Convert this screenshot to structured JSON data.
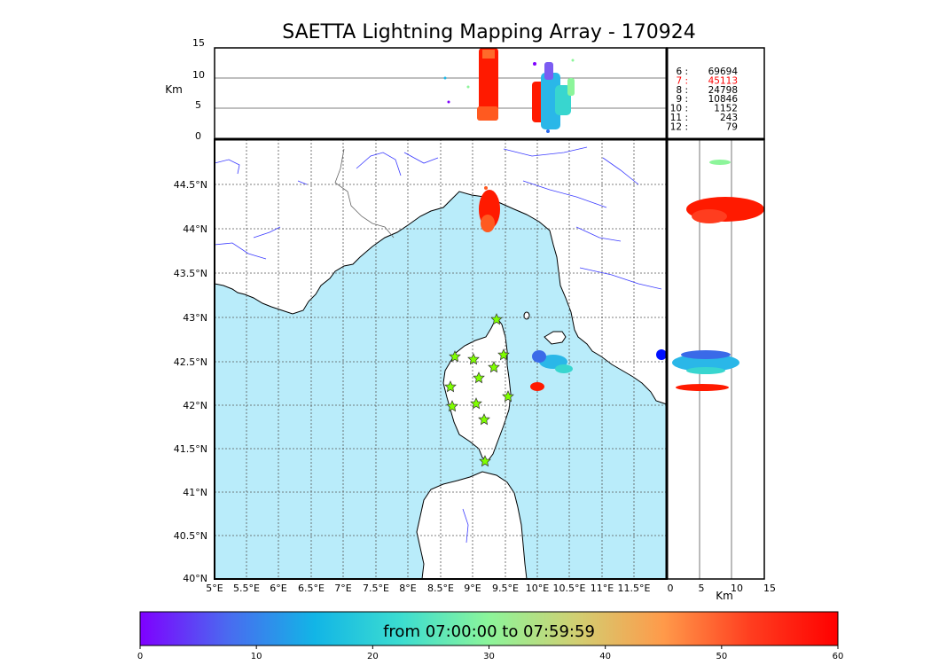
{
  "title": "SAETTA Lightning Mapping Array - 170924",
  "altitude_axis": {
    "unit_label": "Km",
    "ticks": [
      "15",
      "10",
      "5",
      "0"
    ]
  },
  "lat_ticks": [
    "44.5°N",
    "44°N",
    "43.5°N",
    "43°N",
    "42.5°N",
    "42°N",
    "41.5°N",
    "41°N",
    "40.5°N",
    "40°N"
  ],
  "lon_ticks": [
    "5°E",
    "5.5°E",
    "6°E",
    "6.5°E",
    "7°E",
    "7.5°E",
    "8°E",
    "8.5°E",
    "9°E",
    "9.5°E",
    "10°E",
    "10.5°E",
    "11°E",
    "11.5°E"
  ],
  "side_axis": {
    "unit_label": "Km",
    "ticks": [
      "0",
      "5",
      "10",
      "15"
    ]
  },
  "station_counts": [
    {
      "station": "6",
      "count": "69694",
      "color": "#000000"
    },
    {
      "station": "7",
      "count": "45113",
      "color": "#ff0000"
    },
    {
      "station": "8",
      "count": "24798",
      "color": "#000000"
    },
    {
      "station": "9",
      "count": "10846",
      "color": "#000000"
    },
    {
      "station": "10",
      "count": "1152",
      "color": "#000000"
    },
    {
      "station": "11",
      "count": "243",
      "color": "#000000"
    },
    {
      "station": "12",
      "count": "79",
      "color": "#000000"
    }
  ],
  "colorbar": {
    "label": "from 07:00:00 to 07:59:59",
    "ticks": [
      "0",
      "10",
      "20",
      "30",
      "40",
      "50",
      "60"
    ],
    "colors": [
      "#7f00ff",
      "#4a6af0",
      "#12b5e6",
      "#3cddd0",
      "#8cf59a",
      "#d1cf72",
      "#ff9a4a",
      "#ff3d1f",
      "#ff0000"
    ]
  },
  "colors": {
    "sea": "#b9ecfa",
    "land": "#ffffff",
    "rivers": "#3b3bff",
    "station_marker": "#7fff00"
  }
}
